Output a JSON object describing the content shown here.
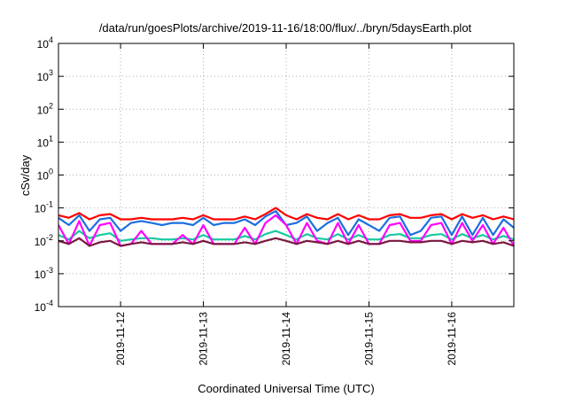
{
  "chart_data": {
    "type": "line",
    "title": "/data/run/goesPlots/archive/2019-11-16/18:00/flux/../bryn/5daysEarth.plot",
    "xlabel": "Coordinated Universal Time (UTC)",
    "ylabel": "cSv/day",
    "yscale": "log",
    "ylim": [
      0.0001,
      10000
    ],
    "xlim": [
      "2019-11-11 06:00",
      "2019-11-16 18:00"
    ],
    "grid": true,
    "yticks": [
      {
        "base": "10",
        "exp": "-4",
        "value": 0.0001
      },
      {
        "base": "10",
        "exp": "-3",
        "value": 0.001
      },
      {
        "base": "10",
        "exp": "-2",
        "value": 0.01
      },
      {
        "base": "10",
        "exp": "-1",
        "value": 0.1
      },
      {
        "base": "10",
        "exp": "0",
        "value": 1
      },
      {
        "base": "10",
        "exp": "1",
        "value": 10
      },
      {
        "base": "10",
        "exp": "2",
        "value": 100
      },
      {
        "base": "10",
        "exp": "3",
        "value": 1000
      },
      {
        "base": "10",
        "exp": "4",
        "value": 10000
      }
    ],
    "xticks": [
      "2019-11-12",
      "2019-11-13",
      "2019-11-14",
      "2019-11-15",
      "2019-11-16"
    ],
    "x": [
      "2019-11-11 06:00",
      "2019-11-11 09:00",
      "2019-11-11 12:00",
      "2019-11-11 15:00",
      "2019-11-11 18:00",
      "2019-11-11 21:00",
      "2019-11-12 00:00",
      "2019-11-12 03:00",
      "2019-11-12 06:00",
      "2019-11-12 09:00",
      "2019-11-12 12:00",
      "2019-11-12 15:00",
      "2019-11-12 18:00",
      "2019-11-12 21:00",
      "2019-11-13 00:00",
      "2019-11-13 03:00",
      "2019-11-13 06:00",
      "2019-11-13 09:00",
      "2019-11-13 12:00",
      "2019-11-13 15:00",
      "2019-11-13 18:00",
      "2019-11-13 21:00",
      "2019-11-14 00:00",
      "2019-11-14 03:00",
      "2019-11-14 06:00",
      "2019-11-14 09:00",
      "2019-11-14 12:00",
      "2019-11-14 15:00",
      "2019-11-14 18:00",
      "2019-11-14 21:00",
      "2019-11-15 00:00",
      "2019-11-15 03:00",
      "2019-11-15 06:00",
      "2019-11-15 09:00",
      "2019-11-15 12:00",
      "2019-11-15 15:00",
      "2019-11-15 18:00",
      "2019-11-15 21:00",
      "2019-11-16 00:00",
      "2019-11-16 03:00",
      "2019-11-16 06:00",
      "2019-11-16 09:00",
      "2019-11-16 12:00",
      "2019-11-16 15:00",
      "2019-11-16 18:00"
    ],
    "series": [
      {
        "color": "#ff0000",
        "values": [
          0.06,
          0.05,
          0.07,
          0.045,
          0.06,
          0.065,
          0.045,
          0.045,
          0.05,
          0.045,
          0.045,
          0.045,
          0.05,
          0.045,
          0.06,
          0.045,
          0.045,
          0.045,
          0.055,
          0.045,
          0.065,
          0.1,
          0.06,
          0.045,
          0.065,
          0.05,
          0.045,
          0.065,
          0.045,
          0.06,
          0.045,
          0.045,
          0.06,
          0.065,
          0.05,
          0.05,
          0.06,
          0.065,
          0.045,
          0.065,
          0.05,
          0.06,
          0.045,
          0.055,
          0.045
        ]
      },
      {
        "color": "#1a6fe0",
        "values": [
          0.05,
          0.03,
          0.06,
          0.02,
          0.045,
          0.05,
          0.02,
          0.035,
          0.04,
          0.035,
          0.03,
          0.035,
          0.035,
          0.03,
          0.05,
          0.03,
          0.035,
          0.035,
          0.045,
          0.03,
          0.055,
          0.08,
          0.03,
          0.035,
          0.055,
          0.02,
          0.035,
          0.05,
          0.015,
          0.045,
          0.03,
          0.02,
          0.05,
          0.055,
          0.015,
          0.02,
          0.05,
          0.055,
          0.015,
          0.055,
          0.015,
          0.05,
          0.015,
          0.045,
          0.025
        ]
      },
      {
        "color": "#17c9a0",
        "values": [
          0.015,
          0.011,
          0.02,
          0.012,
          0.015,
          0.017,
          0.01,
          0.011,
          0.012,
          0.012,
          0.011,
          0.011,
          0.012,
          0.011,
          0.015,
          0.011,
          0.011,
          0.011,
          0.014,
          0.011,
          0.016,
          0.02,
          0.015,
          0.011,
          0.016,
          0.012,
          0.011,
          0.016,
          0.011,
          0.015,
          0.011,
          0.011,
          0.015,
          0.016,
          0.012,
          0.012,
          0.015,
          0.016,
          0.011,
          0.016,
          0.012,
          0.015,
          0.011,
          0.014,
          0.011
        ]
      },
      {
        "color": "#ff00ff",
        "values": [
          0.03,
          0.008,
          0.04,
          0.007,
          0.03,
          0.035,
          0.007,
          0.008,
          0.02,
          0.008,
          0.008,
          0.008,
          0.015,
          0.008,
          0.03,
          0.008,
          0.008,
          0.008,
          0.025,
          0.008,
          0.035,
          0.06,
          0.03,
          0.008,
          0.035,
          0.01,
          0.008,
          0.035,
          0.008,
          0.03,
          0.008,
          0.008,
          0.03,
          0.035,
          0.01,
          0.01,
          0.03,
          0.035,
          0.008,
          0.035,
          0.01,
          0.03,
          0.008,
          0.025,
          0.007
        ]
      },
      {
        "color": "#7a1840",
        "values": [
          0.01,
          0.008,
          0.012,
          0.007,
          0.009,
          0.01,
          0.007,
          0.008,
          0.009,
          0.008,
          0.008,
          0.008,
          0.009,
          0.008,
          0.01,
          0.008,
          0.008,
          0.008,
          0.009,
          0.008,
          0.01,
          0.012,
          0.01,
          0.008,
          0.01,
          0.009,
          0.008,
          0.01,
          0.008,
          0.01,
          0.008,
          0.008,
          0.01,
          0.01,
          0.009,
          0.009,
          0.01,
          0.01,
          0.008,
          0.01,
          0.009,
          0.01,
          0.008,
          0.009,
          0.007
        ]
      }
    ]
  }
}
